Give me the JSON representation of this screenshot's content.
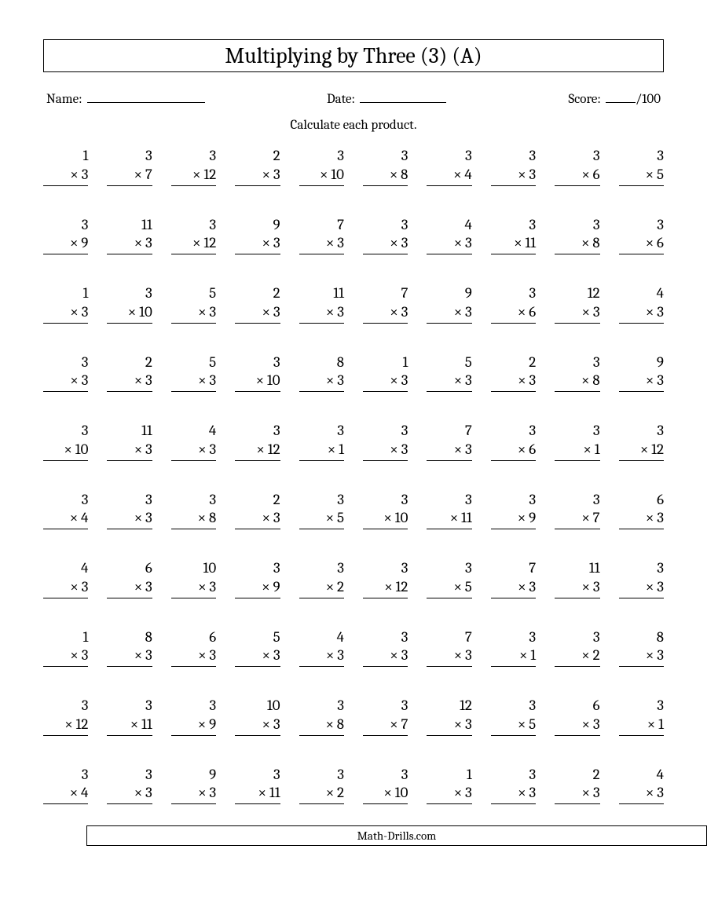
{
  "title": "Multiplying by Three (3) (A)",
  "labels": {
    "name": "Name:",
    "date": "Date:",
    "score": "Score:",
    "score_total": "/100"
  },
  "instruction": "Calculate each product.",
  "footer": "Math-Drills.com",
  "style": {
    "font_family": "Cambria, Georgia, serif",
    "title_fontsize": 28,
    "body_fontsize": 17,
    "problem_fontsize": 19,
    "columns": 10,
    "rows": 10,
    "column_gap": 24,
    "row_gap": 38,
    "text_color": "#000000",
    "background_color": "#ffffff",
    "border_color": "#000000",
    "operator": "×"
  },
  "problems": [
    [
      [
        1,
        3
      ],
      [
        3,
        7
      ],
      [
        3,
        12
      ],
      [
        2,
        3
      ],
      [
        3,
        10
      ],
      [
        3,
        8
      ],
      [
        3,
        4
      ],
      [
        3,
        3
      ],
      [
        3,
        6
      ],
      [
        3,
        5
      ]
    ],
    [
      [
        3,
        9
      ],
      [
        11,
        3
      ],
      [
        3,
        12
      ],
      [
        9,
        3
      ],
      [
        7,
        3
      ],
      [
        3,
        3
      ],
      [
        4,
        3
      ],
      [
        3,
        11
      ],
      [
        3,
        8
      ],
      [
        3,
        6
      ]
    ],
    [
      [
        1,
        3
      ],
      [
        3,
        10
      ],
      [
        5,
        3
      ],
      [
        2,
        3
      ],
      [
        11,
        3
      ],
      [
        7,
        3
      ],
      [
        9,
        3
      ],
      [
        3,
        6
      ],
      [
        12,
        3
      ],
      [
        4,
        3
      ]
    ],
    [
      [
        3,
        3
      ],
      [
        2,
        3
      ],
      [
        5,
        3
      ],
      [
        3,
        10
      ],
      [
        8,
        3
      ],
      [
        1,
        3
      ],
      [
        5,
        3
      ],
      [
        2,
        3
      ],
      [
        3,
        8
      ],
      [
        9,
        3
      ]
    ],
    [
      [
        3,
        10
      ],
      [
        11,
        3
      ],
      [
        4,
        3
      ],
      [
        3,
        12
      ],
      [
        3,
        1
      ],
      [
        3,
        3
      ],
      [
        7,
        3
      ],
      [
        3,
        6
      ],
      [
        3,
        1
      ],
      [
        3,
        12
      ]
    ],
    [
      [
        3,
        4
      ],
      [
        3,
        3
      ],
      [
        3,
        8
      ],
      [
        2,
        3
      ],
      [
        3,
        5
      ],
      [
        3,
        10
      ],
      [
        3,
        11
      ],
      [
        3,
        9
      ],
      [
        3,
        7
      ],
      [
        6,
        3
      ]
    ],
    [
      [
        4,
        3
      ],
      [
        6,
        3
      ],
      [
        10,
        3
      ],
      [
        3,
        9
      ],
      [
        3,
        2
      ],
      [
        3,
        12
      ],
      [
        3,
        5
      ],
      [
        7,
        3
      ],
      [
        11,
        3
      ],
      [
        3,
        3
      ]
    ],
    [
      [
        1,
        3
      ],
      [
        8,
        3
      ],
      [
        6,
        3
      ],
      [
        5,
        3
      ],
      [
        4,
        3
      ],
      [
        3,
        3
      ],
      [
        7,
        3
      ],
      [
        3,
        1
      ],
      [
        3,
        2
      ],
      [
        8,
        3
      ]
    ],
    [
      [
        3,
        12
      ],
      [
        3,
        11
      ],
      [
        3,
        9
      ],
      [
        10,
        3
      ],
      [
        3,
        8
      ],
      [
        3,
        7
      ],
      [
        12,
        3
      ],
      [
        3,
        5
      ],
      [
        6,
        3
      ],
      [
        3,
        1
      ]
    ],
    [
      [
        3,
        4
      ],
      [
        3,
        3
      ],
      [
        9,
        3
      ],
      [
        3,
        11
      ],
      [
        3,
        2
      ],
      [
        3,
        10
      ],
      [
        1,
        3
      ],
      [
        3,
        3
      ],
      [
        2,
        3
      ],
      [
        4,
        3
      ]
    ]
  ]
}
